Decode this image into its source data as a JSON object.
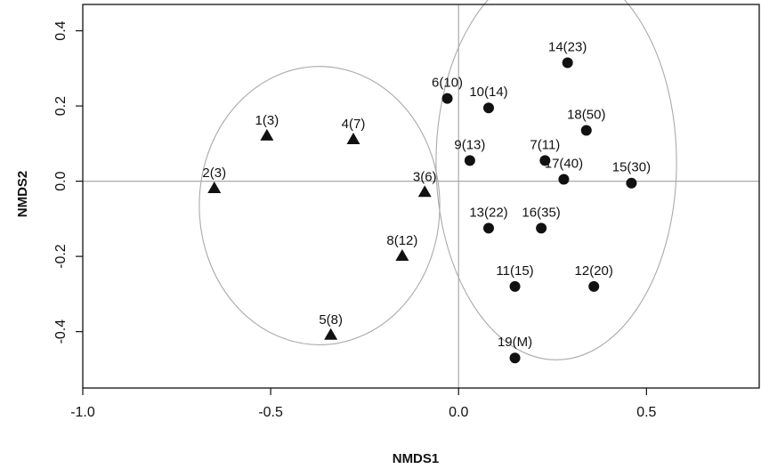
{
  "chart_data": {
    "type": "scatter",
    "title": "",
    "xlabel": "NMDS1",
    "ylabel": "NMDS2",
    "xlim": [
      -1.0,
      0.8
    ],
    "ylim": [
      -0.55,
      0.47
    ],
    "xticks": [
      "-1.0",
      "-0.5",
      "0.0",
      "0.5"
    ],
    "yticks": [
      "0.4",
      "0.2",
      "0.0",
      "-0.2",
      "-0.4"
    ],
    "reference_lines": {
      "x": 0,
      "y": 0
    },
    "grid": false,
    "series": [
      {
        "marker": "triangle",
        "points": [
          {
            "label": "1(3)",
            "x": -0.51,
            "y": 0.12
          },
          {
            "label": "2(3)",
            "x": -0.65,
            "y": -0.02
          },
          {
            "label": "3(6)",
            "x": -0.09,
            "y": -0.03
          },
          {
            "label": "4(7)",
            "x": -0.28,
            "y": 0.11
          },
          {
            "label": "5(8)",
            "x": -0.34,
            "y": -0.41
          },
          {
            "label": "8(12)",
            "x": -0.15,
            "y": -0.2
          }
        ]
      },
      {
        "marker": "circle",
        "points": [
          {
            "label": "6(10)",
            "x": -0.03,
            "y": 0.22
          },
          {
            "label": "7(11)",
            "x": 0.23,
            "y": 0.055
          },
          {
            "label": "9(13)",
            "x": 0.03,
            "y": 0.055
          },
          {
            "label": "10(14)",
            "x": 0.08,
            "y": 0.195
          },
          {
            "label": "11(15)",
            "x": 0.15,
            "y": -0.28
          },
          {
            "label": "12(20)",
            "x": 0.36,
            "y": -0.28
          },
          {
            "label": "13(22)",
            "x": 0.08,
            "y": -0.125
          },
          {
            "label": "14(23)",
            "x": 0.29,
            "y": 0.315
          },
          {
            "label": "15(30)",
            "x": 0.46,
            "y": -0.005
          },
          {
            "label": "16(35)",
            "x": 0.22,
            "y": -0.125
          },
          {
            "label": "17(40)",
            "x": 0.28,
            "y": 0.005
          },
          {
            "label": "18(50)",
            "x": 0.34,
            "y": 0.135
          },
          {
            "label": "19(M)",
            "x": 0.15,
            "y": -0.47
          }
        ]
      }
    ],
    "ellipses": [
      {
        "cx": -0.37,
        "cy": -0.065,
        "rx": 0.32,
        "ry": 0.37
      },
      {
        "cx": 0.26,
        "cy": 0.05,
        "rx": 0.32,
        "ry": 0.525
      }
    ],
    "colors": {
      "marker": "#111111",
      "ellipse": "#aaaaaa",
      "reference": "#aaaaaa",
      "frame": "#111111"
    }
  }
}
